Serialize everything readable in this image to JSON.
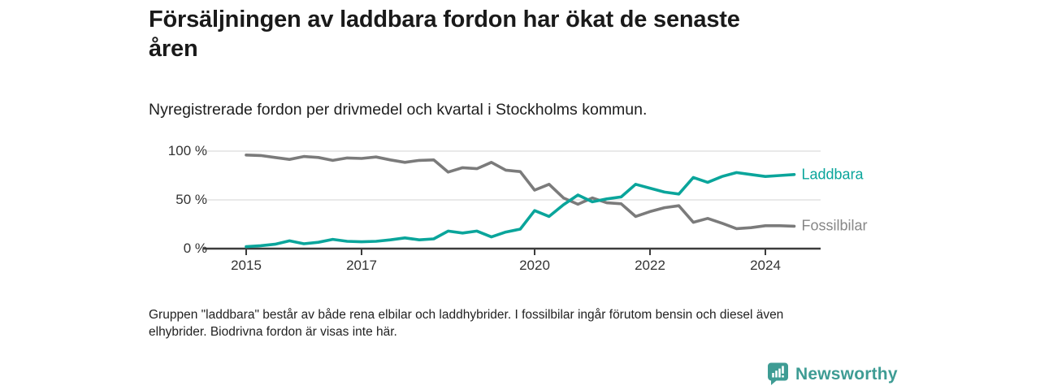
{
  "header": {
    "title_line1": "Försäljningen av laddbara fordon har ökat de senaste",
    "title_line2": "åren",
    "subtitle": "Nyregistrerade fordon per drivmedel och kvartal i Stockholms kommun."
  },
  "footnote": {
    "line1": "Gruppen \"laddbara\" består av både rena elbilar och laddhybrider. I fossilbilar ingår förutom bensin och diesel även",
    "line2": "elhybrider. Biodrivna fordon är visas inte här."
  },
  "branding": {
    "logo_icon": "bar-chart-speech-bubble",
    "logo_text": "Newsworthy",
    "logo_color": "#3E9C94"
  },
  "chart_data": {
    "type": "line",
    "unit": "%",
    "title": "Försäljningen av laddbara fordon har ökat de senaste åren",
    "subtitle": "Nyregistrerade fordon per drivmedel och kvartal i Stockholms kommun.",
    "ylim": [
      0,
      100
    ],
    "grid": "horizontal",
    "legend_position": "right-of-line-ends",
    "colors": {
      "laddbara": "#0AA59B",
      "fossilbilar": "#7B7B7B",
      "laddbara_label": "#0AA59B",
      "fossilbilar_label": "#878787",
      "axis": "#3C3C3C",
      "gridline": "#DCDCDC"
    },
    "y_ticks": [
      {
        "value": 100,
        "label": "100 %"
      },
      {
        "value": 50,
        "label": "50 %"
      },
      {
        "value": 0,
        "label": "0 %"
      }
    ],
    "x_ticks": [
      {
        "year": 2015,
        "label": "2015"
      },
      {
        "year": 2017,
        "label": "2017"
      },
      {
        "year": 2020,
        "label": "2020"
      },
      {
        "year": 2022,
        "label": "2022"
      },
      {
        "year": 2024,
        "label": "2024"
      }
    ],
    "quarters": [
      "2015 Q1",
      "2015 Q2",
      "2015 Q3",
      "2015 Q4",
      "2016 Q1",
      "2016 Q2",
      "2016 Q3",
      "2016 Q4",
      "2017 Q1",
      "2017 Q2",
      "2017 Q3",
      "2017 Q4",
      "2018 Q1",
      "2018 Q2",
      "2018 Q3",
      "2018 Q4",
      "2019 Q1",
      "2019 Q2",
      "2019 Q3",
      "2019 Q4",
      "2020 Q1",
      "2020 Q2",
      "2020 Q3",
      "2020 Q4",
      "2021 Q1",
      "2021 Q2",
      "2021 Q3",
      "2021 Q4",
      "2022 Q1",
      "2022 Q2",
      "2022 Q3",
      "2022 Q4",
      "2023 Q1",
      "2023 Q2",
      "2023 Q3",
      "2023 Q4",
      "2024 Q1",
      "2024 Q2",
      "2024 Q3"
    ],
    "series": [
      {
        "name": "Laddbara",
        "color": "#0AA59B",
        "label_color": "#0AA59B",
        "values": [
          2,
          3,
          4.5,
          8,
          5,
          6.5,
          9.5,
          7.5,
          7,
          7.5,
          9,
          11,
          9,
          10,
          18,
          16,
          18,
          12,
          17,
          20,
          39,
          33,
          45,
          55,
          48,
          51,
          53,
          66,
          62,
          58,
          56,
          73,
          68,
          74,
          78,
          76,
          74,
          75,
          76
        ]
      },
      {
        "name": "Fossilbilar",
        "color": "#7B7B7B",
        "label_color": "#878787",
        "values": [
          96,
          95.5,
          93.5,
          91.5,
          94.5,
          93.5,
          90.5,
          93,
          92.5,
          94,
          91,
          88.5,
          90.5,
          91,
          78.5,
          83,
          82,
          88.5,
          80.5,
          79,
          60,
          66,
          52,
          45.5,
          52,
          47,
          46,
          33,
          38,
          42,
          44,
          27,
          31,
          26,
          20.5,
          21.5,
          23.5,
          23.5,
          23
        ]
      }
    ]
  }
}
